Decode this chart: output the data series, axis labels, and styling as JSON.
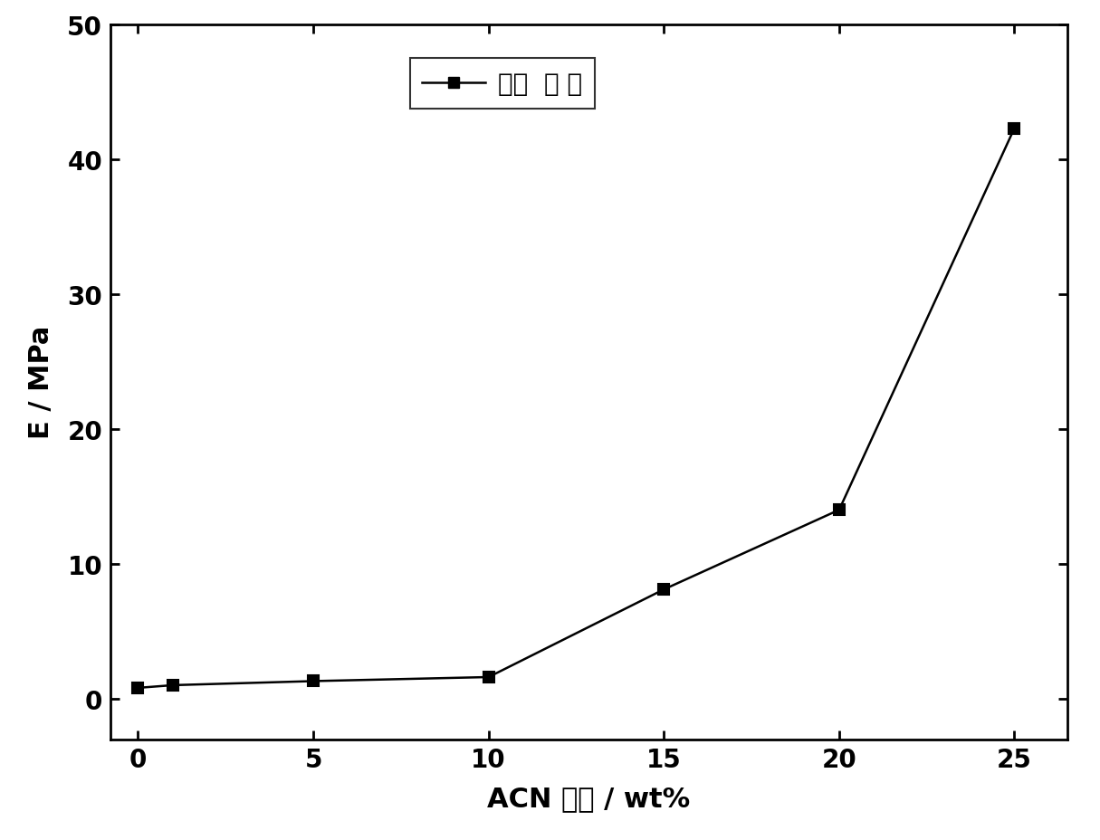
{
  "x": [
    0,
    1,
    5,
    10,
    15,
    20,
    25
  ],
  "y": [
    0.8,
    1.0,
    1.3,
    1.6,
    8.1,
    14.0,
    42.3
  ],
  "xlabel": "ACN 含量 / wt%",
  "ylabel": "E / MPa",
  "xlim": [
    -0.8,
    26.5
  ],
  "ylim": [
    -3,
    50
  ],
  "xticks": [
    0,
    5,
    10,
    15,
    20,
    25
  ],
  "yticks": [
    0,
    10,
    20,
    30,
    40,
    50
  ],
  "legend_label": "弹性  模 量",
  "line_color": "#000000",
  "marker": "s",
  "marker_size": 9,
  "marker_color": "#000000",
  "line_width": 1.8,
  "legend_fontsize": 20,
  "axis_label_fontsize": 22,
  "tick_fontsize": 20,
  "background_color": "#ffffff"
}
